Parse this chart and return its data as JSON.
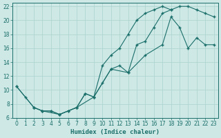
{
  "xlabel": "Humidex (Indice chaleur)",
  "xlim": [
    -0.5,
    23.5
  ],
  "ylim": [
    6,
    22.5
  ],
  "xticks": [
    0,
    1,
    2,
    3,
    4,
    5,
    6,
    7,
    8,
    9,
    10,
    11,
    12,
    13,
    14,
    15,
    16,
    17,
    18,
    19,
    20,
    21,
    22,
    23
  ],
  "yticks": [
    6,
    8,
    10,
    12,
    14,
    16,
    18,
    20,
    22
  ],
  "bg_color": "#cde8e5",
  "grid_color": "#b0d5d0",
  "line_color": "#1a6e6a",
  "line1_x": [
    0,
    1,
    2,
    3,
    4,
    5,
    6,
    7,
    8,
    9,
    10,
    11,
    12,
    13,
    14,
    15,
    16,
    17,
    18
  ],
  "line1_y": [
    10.5,
    9.0,
    7.5,
    7.0,
    7.0,
    6.5,
    7.0,
    7.5,
    9.5,
    9.0,
    13.5,
    15.0,
    16.0,
    18.0,
    20.0,
    21.0,
    21.5,
    22.0,
    21.5
  ],
  "line2_x": [
    2,
    3,
    4,
    5,
    6,
    7,
    8,
    9,
    10,
    11,
    12,
    13,
    14,
    15,
    16,
    17,
    18,
    19,
    20,
    21,
    22,
    23
  ],
  "line2_y": [
    7.5,
    7.0,
    7.0,
    6.5,
    7.0,
    7.5,
    9.5,
    9.0,
    11.0,
    13.0,
    13.5,
    12.5,
    16.5,
    17.0,
    19.0,
    21.0,
    21.5,
    22.0,
    22.0,
    21.5,
    21.0,
    20.5
  ],
  "line3_x": [
    0,
    2,
    3,
    5,
    7,
    9,
    11,
    13,
    15,
    17,
    18,
    19,
    20,
    21,
    22,
    23
  ],
  "line3_y": [
    10.5,
    7.5,
    7.0,
    6.5,
    7.5,
    9.0,
    13.0,
    12.5,
    15.0,
    16.5,
    20.5,
    19.0,
    16.0,
    17.5,
    16.5,
    16.5
  ]
}
